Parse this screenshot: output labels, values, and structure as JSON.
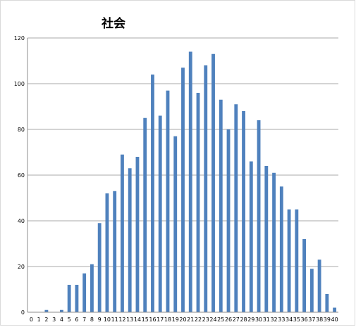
{
  "chart_data": {
    "type": "bar",
    "title": "社会",
    "xlabel": "",
    "ylabel": "",
    "ylim": [
      0,
      120
    ],
    "yticks": [
      0,
      20,
      40,
      60,
      80,
      100,
      120
    ],
    "grid": true,
    "legend": "none",
    "bar_color": "#4f81bd",
    "categories": [
      "0",
      "1",
      "2",
      "3",
      "4",
      "5",
      "6",
      "7",
      "8",
      "9",
      "10",
      "11",
      "12",
      "13",
      "14",
      "15",
      "16",
      "17",
      "18",
      "19",
      "20",
      "21",
      "22",
      "23",
      "24",
      "25",
      "26",
      "27",
      "28",
      "29",
      "30",
      "31",
      "32",
      "33",
      "34",
      "35",
      "36",
      "37",
      "38",
      "39",
      "40"
    ],
    "values": [
      0,
      0,
      1,
      0,
      1,
      12,
      12,
      17,
      21,
      39,
      52,
      53,
      69,
      63,
      68,
      85,
      104,
      86,
      97,
      77,
      107,
      114,
      96,
      108,
      113,
      93,
      80,
      91,
      88,
      66,
      84,
      64,
      61,
      55,
      45,
      45,
      32,
      19,
      23,
      8,
      2
    ]
  }
}
